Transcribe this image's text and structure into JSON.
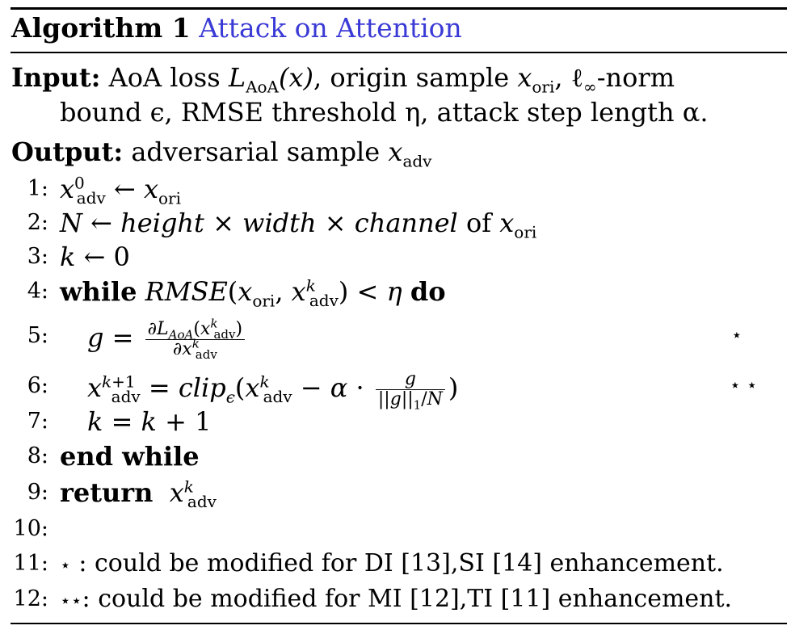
{
  "algorithm": {
    "label": "Algorithm 1",
    "name": "Attack on Attention"
  },
  "input": {
    "label": "Input:",
    "line1_text1": "AoA loss ",
    "line1_loss": "L",
    "line1_loss_sub": "AoA",
    "line1_loss_arg": "(x)",
    "line1_text2": ", origin sample ",
    "line1_x": "x",
    "line1_x_sub": "ori",
    "line1_text3": ", ℓ",
    "line1_inf": "∞",
    "line1_text4": "-norm",
    "line2": "bound ϵ, RMSE threshold η, attack step length α."
  },
  "output": {
    "label": "Output:",
    "text": "adversarial sample ",
    "x": "x",
    "x_sub": "adv"
  },
  "steps": [
    {
      "num": "1:"
    },
    {
      "num": "2:"
    },
    {
      "num": "3:"
    },
    {
      "num": "4:"
    },
    {
      "num": "5:"
    },
    {
      "num": "6:"
    },
    {
      "num": "7:"
    },
    {
      "num": "8:"
    },
    {
      "num": "9:"
    },
    {
      "num": "10:"
    },
    {
      "num": "11:"
    },
    {
      "num": "12:"
    }
  ],
  "keywords": {
    "while": "while",
    "do": "do",
    "end_while": "end while",
    "return": "return",
    "of": "of"
  },
  "markers": {
    "single_star": "⋆",
    "double_star": "⋆ ⋆"
  },
  "notes": {
    "note11_mark": "⋆",
    "note11_text": " : could be modified for DI [13],SI [14] enhancement.",
    "note12_mark": "⋆⋆",
    "note12_text": ": could be modified for MI [12],TI [11] enhancement."
  }
}
